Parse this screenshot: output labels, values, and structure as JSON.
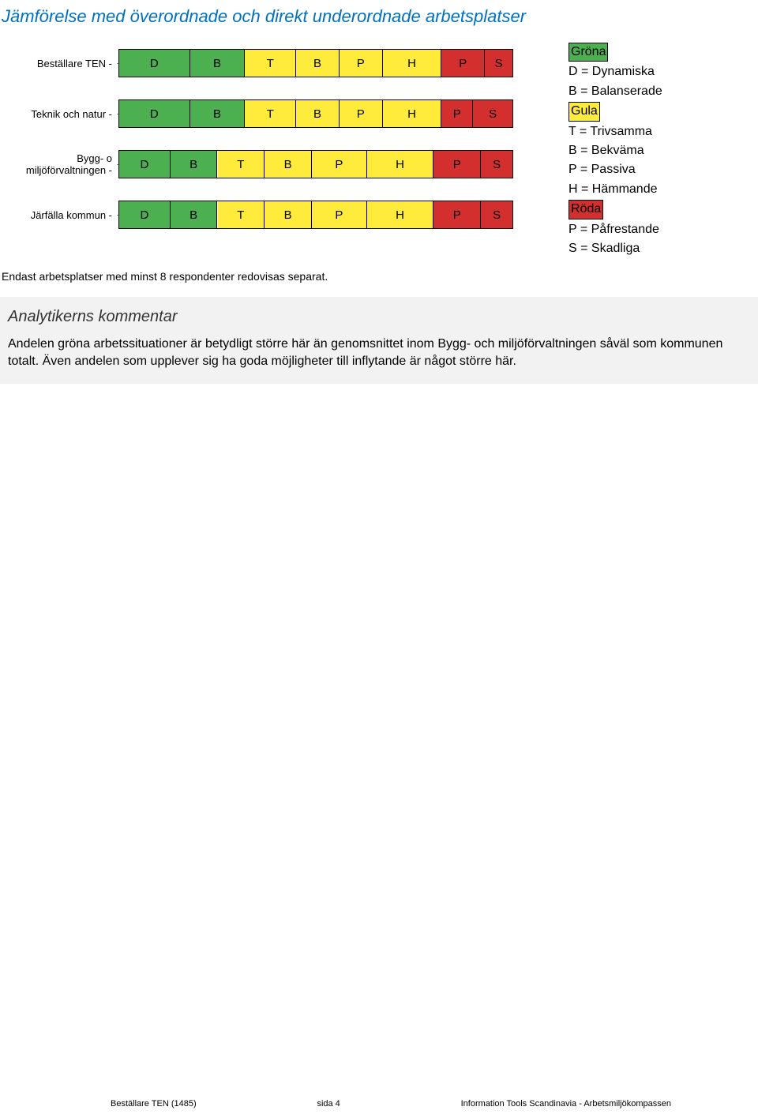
{
  "title": "Jämförelse med överordnade och direkt underordnade arbetsplatser",
  "chart": {
    "colors": {
      "green": "#4caf50",
      "yellow": "#ffeb3b",
      "red": "#d32f2f"
    },
    "rows": [
      {
        "label": "Beställare TEN -",
        "segments": [
          {
            "color": "green",
            "width": 18,
            "text": "D"
          },
          {
            "color": "green",
            "width": 14,
            "text": "B"
          },
          {
            "color": "yellow",
            "width": 13,
            "text": "T"
          },
          {
            "color": "yellow",
            "width": 11,
            "text": "B"
          },
          {
            "color": "yellow",
            "width": 11,
            "text": "P"
          },
          {
            "color": "yellow",
            "width": 15,
            "text": "H"
          },
          {
            "color": "red",
            "width": 11,
            "text": "P"
          },
          {
            "color": "red",
            "width": 7,
            "text": "S"
          }
        ]
      },
      {
        "label": "Teknik och natur -",
        "segments": [
          {
            "color": "green",
            "width": 18,
            "text": "D"
          },
          {
            "color": "green",
            "width": 14,
            "text": "B"
          },
          {
            "color": "yellow",
            "width": 13,
            "text": "T"
          },
          {
            "color": "yellow",
            "width": 11,
            "text": "B"
          },
          {
            "color": "yellow",
            "width": 11,
            "text": "P"
          },
          {
            "color": "yellow",
            "width": 15,
            "text": "H"
          },
          {
            "color": "red",
            "width": 8,
            "text": "P"
          },
          {
            "color": "red",
            "width": 10,
            "text": "S"
          }
        ]
      },
      {
        "label": "Bygg- o miljöförvaltningen -",
        "segments": [
          {
            "color": "green",
            "width": 13,
            "text": "D"
          },
          {
            "color": "green",
            "width": 12,
            "text": "B"
          },
          {
            "color": "yellow",
            "width": 12,
            "text": "T"
          },
          {
            "color": "yellow",
            "width": 12,
            "text": "B"
          },
          {
            "color": "yellow",
            "width": 14,
            "text": "P"
          },
          {
            "color": "yellow",
            "width": 17,
            "text": "H"
          },
          {
            "color": "red",
            "width": 12,
            "text": "P"
          },
          {
            "color": "red",
            "width": 8,
            "text": "S"
          }
        ]
      },
      {
        "label": "Järfälla kommun -",
        "segments": [
          {
            "color": "green",
            "width": 13,
            "text": "D"
          },
          {
            "color": "green",
            "width": 12,
            "text": "B"
          },
          {
            "color": "yellow",
            "width": 12,
            "text": "T"
          },
          {
            "color": "yellow",
            "width": 12,
            "text": "B"
          },
          {
            "color": "yellow",
            "width": 14,
            "text": "P"
          },
          {
            "color": "yellow",
            "width": 17,
            "text": "H"
          },
          {
            "color": "red",
            "width": 12,
            "text": "P"
          },
          {
            "color": "red",
            "width": 8,
            "text": "S"
          }
        ]
      }
    ]
  },
  "legend": {
    "groups": [
      {
        "heading": "Gröna",
        "bg": "#4caf50",
        "fg": "#000",
        "items": [
          {
            "code": "D",
            "name": "Dynamiska"
          },
          {
            "code": "B",
            "name": "Balanserade"
          }
        ]
      },
      {
        "heading": "Gula",
        "bg": "#ffeb3b",
        "fg": "#000",
        "items": [
          {
            "code": "T",
            "name": "Trivsamma"
          },
          {
            "code": "B",
            "name": "Bekväma"
          },
          {
            "code": "P",
            "name": "Passiva"
          },
          {
            "code": "H",
            "name": "Hämmande"
          }
        ]
      },
      {
        "heading": "Röda",
        "bg": "#d32f2f",
        "fg": "#000",
        "items": [
          {
            "code": "P",
            "name": "Påfrestande"
          },
          {
            "code": "S",
            "name": "Skadliga"
          }
        ]
      }
    ]
  },
  "footnote": "Endast arbetsplatser med minst 8 respondenter redovisas separat.",
  "comment": {
    "title": "Analytikerns kommentar",
    "body": "Andelen gröna arbetssituationer är betydligt större här än genomsnittet inom Bygg- och miljöförvaltningen såväl som kommunen totalt. Även andelen som upplever sig ha goda möjligheter till inflytande är något större här."
  },
  "footer": {
    "left": "Beställare TEN (1485)",
    "center": "sida 4",
    "right": "Information Tools Scandinavia - Arbetsmiljökompassen"
  }
}
